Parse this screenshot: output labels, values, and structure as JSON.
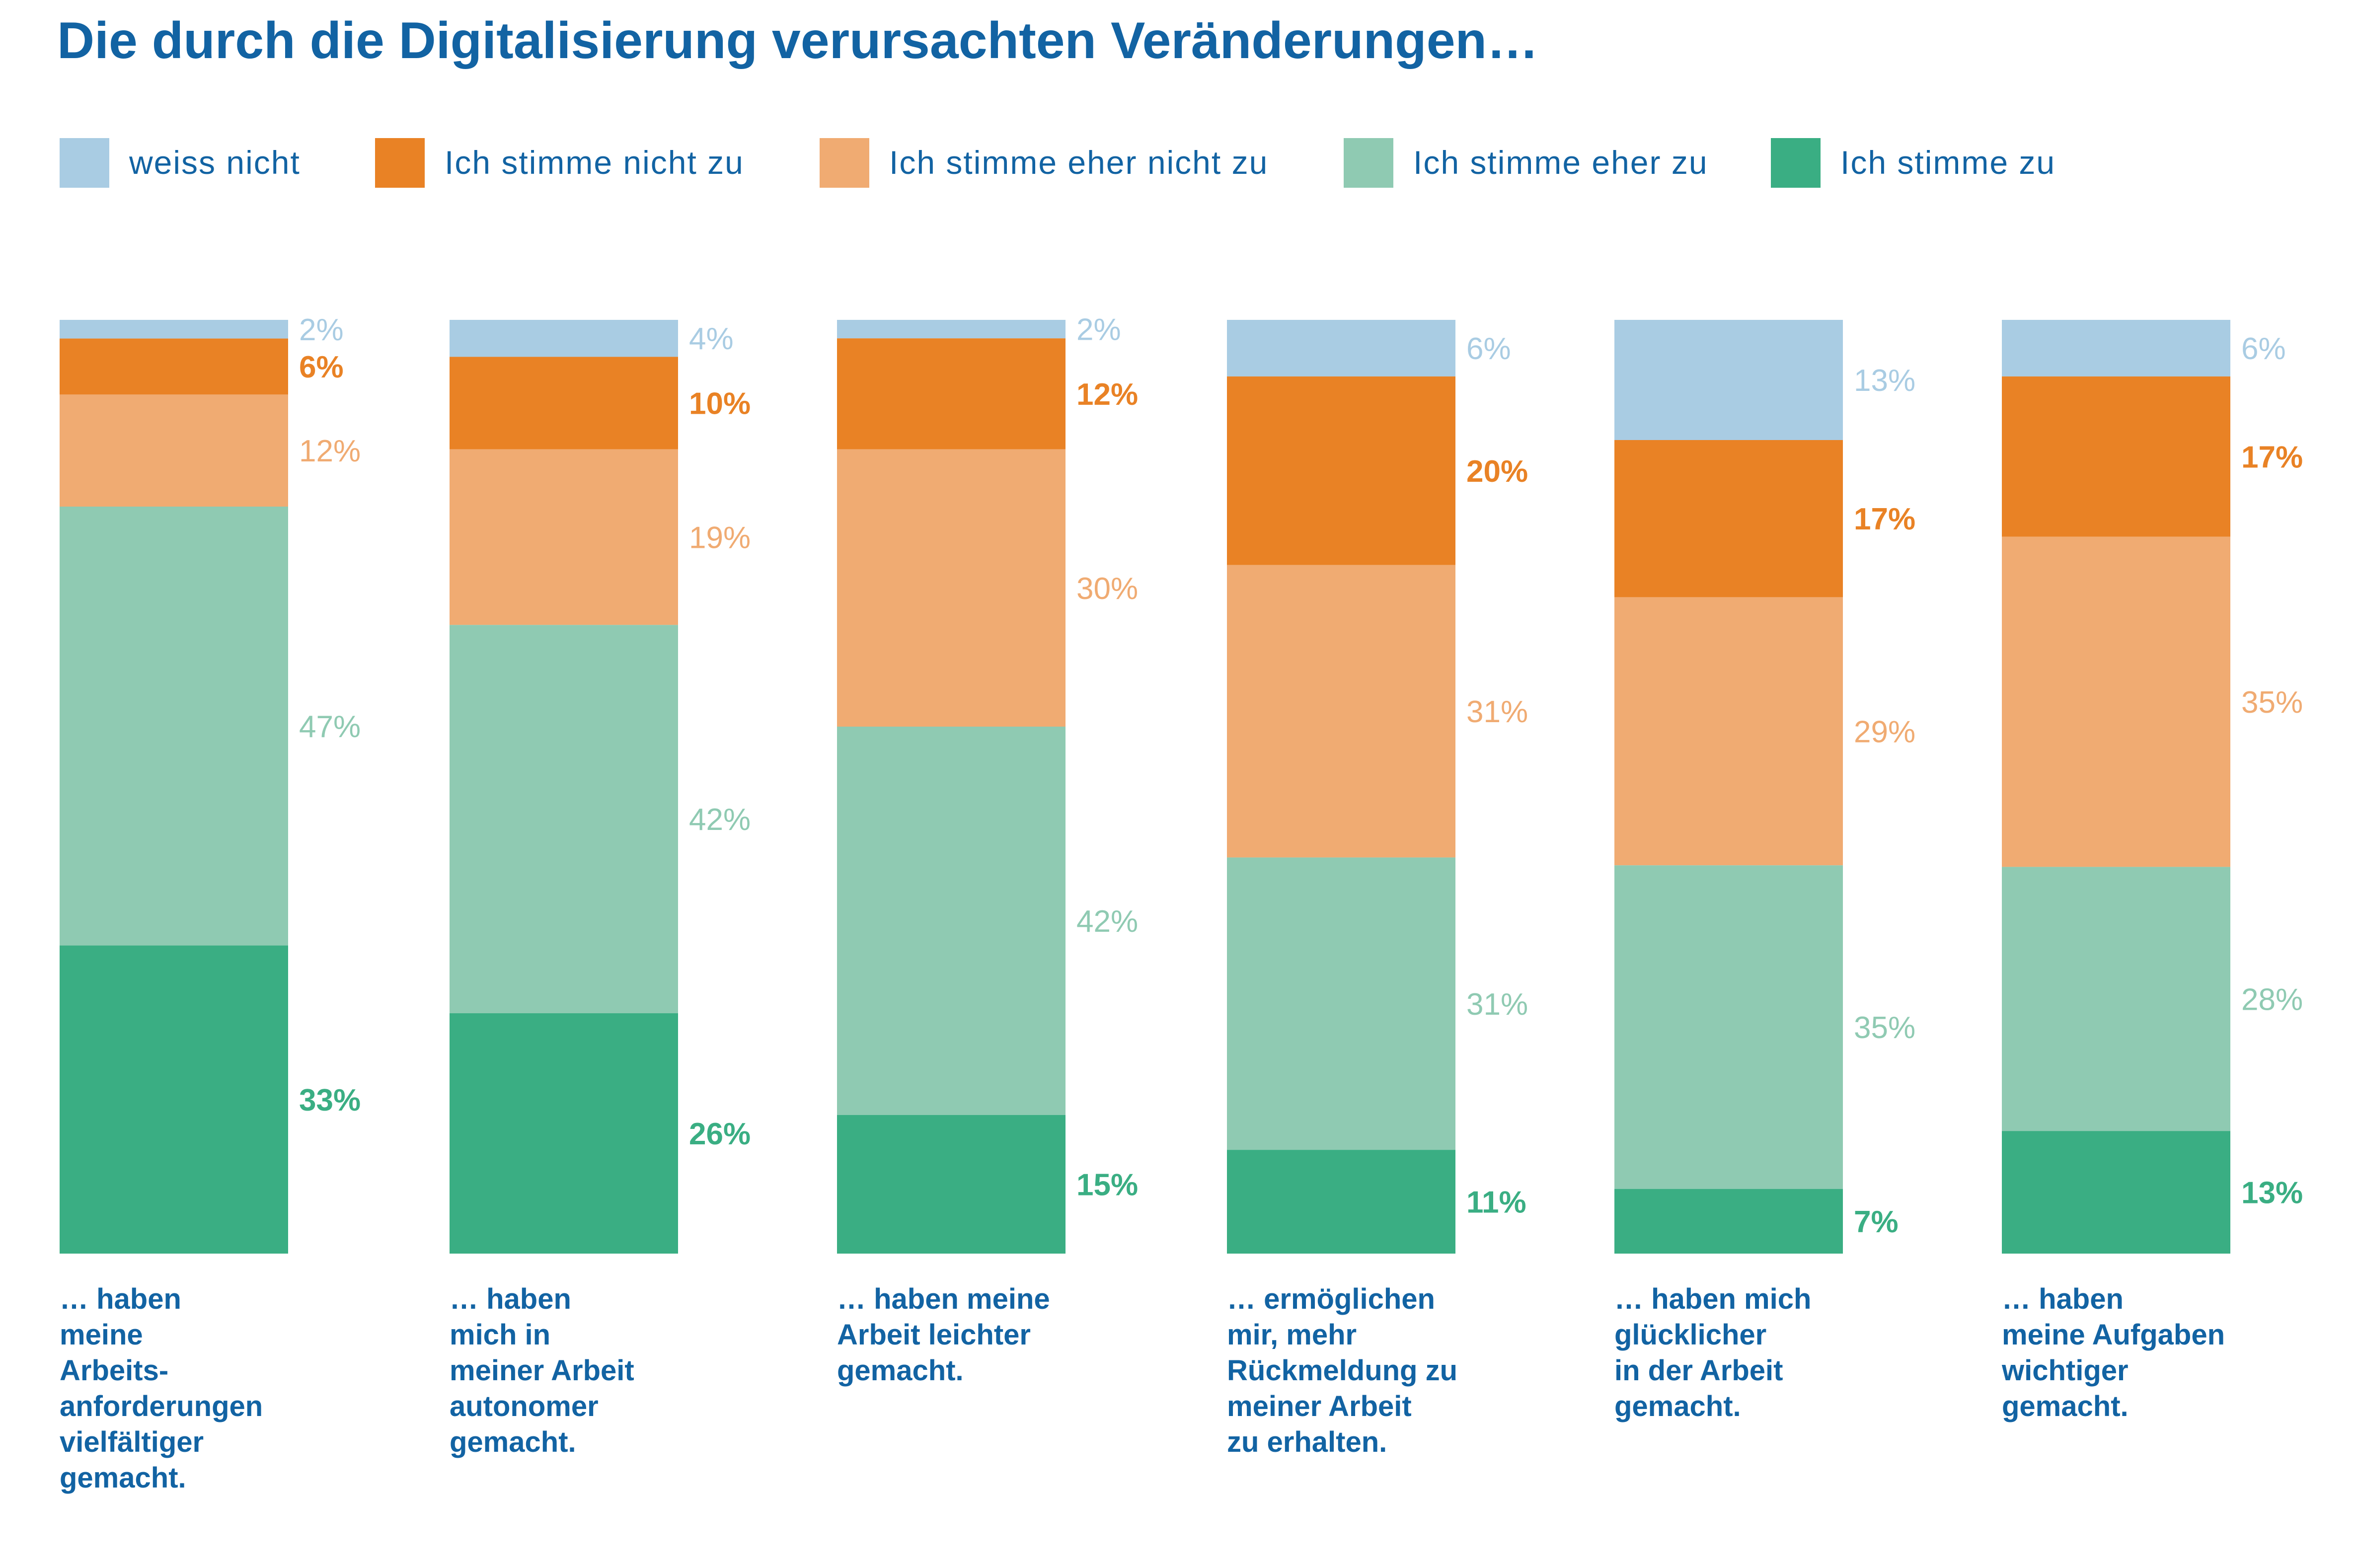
{
  "title": "Die durch die Digitalisierung verursachten Veränderungen…",
  "legend": [
    {
      "label": "weiss nicht",
      "color": "#a9cce3"
    },
    {
      "label": "Ich stimme nicht zu",
      "color": "#e98225"
    },
    {
      "label": "Ich stimme eher nicht zu",
      "color": "#f0ab72"
    },
    {
      "label": "Ich stimme eher zu",
      "color": "#8fcab2"
    },
    {
      "label": "Ich stimme zu",
      "color": "#3aae83"
    }
  ],
  "categories": [
    "… haben\nmeine\nArbeits-\nanforderungen\nvielfältiger\ngemacht.",
    "… haben\nmich in\nmeiner Arbeit\nautonomer\ngemacht.",
    "… haben meine\nArbeit leichter\ngemacht.",
    "… ermöglichen\nmir, mehr\nRückmeldung zu\nmeiner Arbeit\nzu erhalten.",
    "… haben mich\nglücklicher\nin der Arbeit\ngemacht.",
    "… haben\nmeine Aufgaben\nwichtiger\ngemacht."
  ],
  "chart_data": {
    "type": "bar",
    "stacked": true,
    "normalized": true,
    "title": "Die durch die Digitalisierung verursachten Veränderungen…",
    "categories": [
      "… haben meine Arbeits-anforderungen vielfältiger gemacht.",
      "… haben mich in meiner Arbeit autonomer gemacht.",
      "… haben meine Arbeit leichter gemacht.",
      "… ermöglichen mir, mehr Rückmeldung zu meiner Arbeit zu erhalten.",
      "… haben mich glücklicher in der Arbeit gemacht.",
      "… haben meine Aufgaben wichtiger gemacht."
    ],
    "series": [
      {
        "name": "weiss nicht",
        "color": "#a9cce3",
        "values": [
          2,
          4,
          2,
          6,
          13,
          6
        ],
        "labels": [
          "2%",
          "4%",
          "2%",
          "6%",
          "13%",
          "6%"
        ],
        "label_bold": false
      },
      {
        "name": "Ich stimme nicht zu",
        "color": "#e98225",
        "values": [
          6,
          10,
          12,
          20,
          17,
          17
        ],
        "labels": [
          "6%",
          "10%",
          "12%",
          "20%",
          "17%",
          "17%"
        ],
        "label_bold": true
      },
      {
        "name": "Ich stimme eher nicht zu",
        "color": "#f0ab72",
        "values": [
          12,
          19,
          30,
          31,
          29,
          35
        ],
        "labels": [
          "12%",
          "19%",
          "30%",
          "31%",
          "29%",
          "35%"
        ],
        "label_bold": false
      },
      {
        "name": "Ich stimme eher zu",
        "color": "#8fcab2",
        "values": [
          47,
          42,
          42,
          31,
          35,
          28
        ],
        "labels": [
          "47%",
          "42%",
          "42%",
          "31%",
          "35%",
          "28%"
        ],
        "label_bold": false
      },
      {
        "name": "Ich stimme zu",
        "color": "#3aae83",
        "values": [
          33,
          26,
          15,
          11,
          7,
          13
        ],
        "labels": [
          "33%",
          "26%",
          "15%",
          "11%",
          "7%",
          "13%"
        ],
        "label_bold": true
      }
    ],
    "ylim": [
      0,
      100
    ],
    "grid": false,
    "legend_position": "top-left"
  }
}
